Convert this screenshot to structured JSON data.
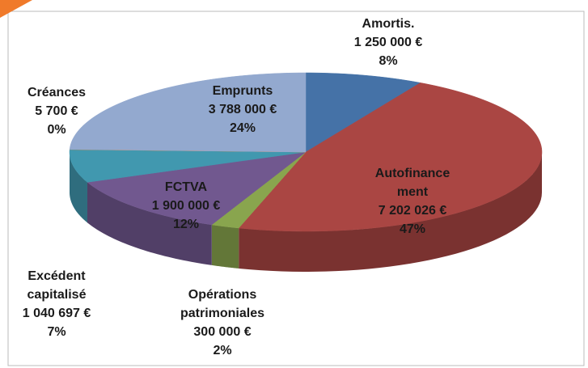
{
  "chart_data": {
    "type": "pie3d",
    "categories": [
      "Amortis.",
      "Autofinance ment",
      "Opérations patrimoniales",
      "FCTVA",
      "Excédent capitalisé",
      "Créances",
      "Emprunts"
    ],
    "values": [
      1250000,
      7202026,
      300000,
      1900000,
      1040697,
      5700,
      3788000
    ],
    "value_labels": [
      "1 250 000 €",
      "7 202 026 €",
      "300 000 €",
      "1 900 000 €",
      "1 040 697 €",
      "5 700 €",
      "3 788 000 €"
    ],
    "percents": [
      8,
      47,
      2,
      12,
      7,
      0,
      24
    ],
    "percent_labels": [
      "8%",
      "47%",
      "2%",
      "12%",
      "7%",
      "0%",
      "24%"
    ],
    "colors": [
      "#4572a7",
      "#aa4643",
      "#89a54e",
      "#71588f",
      "#4198af",
      "#db843d",
      "#93a9cf"
    ]
  }
}
